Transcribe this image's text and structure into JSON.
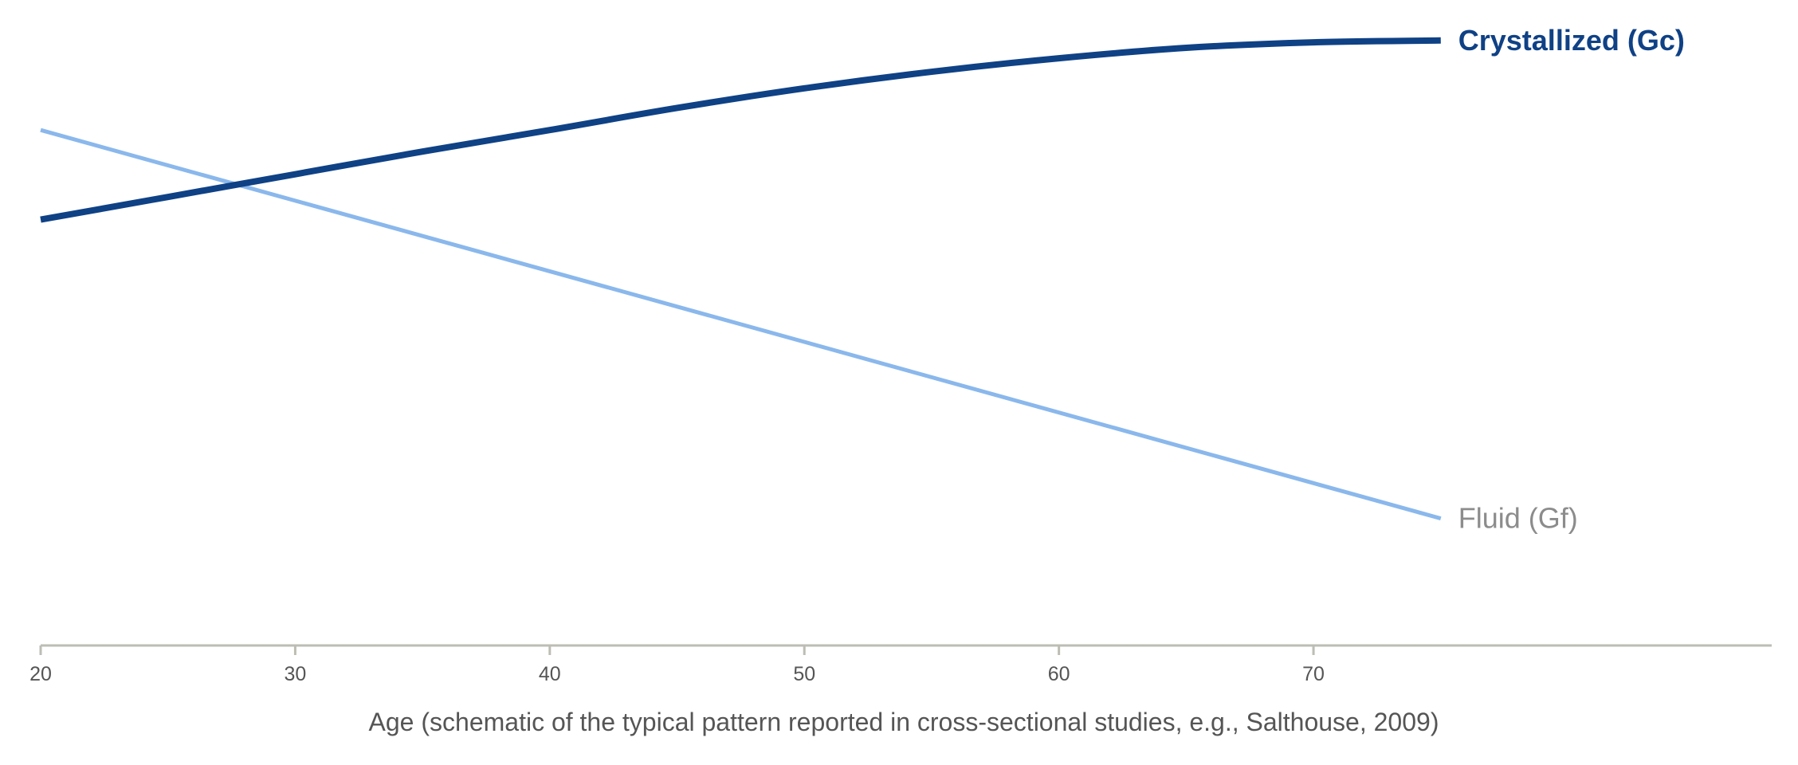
{
  "chart_data": {
    "type": "line",
    "title": "",
    "xlabel": "Age (schematic of the typical pattern reported in cross-sectional studies, e.g., Salthouse, 2009)",
    "ylabel": "",
    "xlim": [
      20,
      88
    ],
    "ylim": [
      0,
      100
    ],
    "x_ticks": [
      20,
      30,
      40,
      50,
      60,
      70
    ],
    "x_tick_labels": [
      "20",
      "30",
      "40",
      "50",
      "60",
      "70"
    ],
    "grid": false,
    "legend": "direct labels at line ends",
    "series": [
      {
        "name": "Crystallized (Gc)",
        "color": "#0f4185",
        "emphasis": "bold",
        "label_color": "#0f4185",
        "x": [
          20,
          25,
          30,
          35,
          40,
          45,
          50,
          55,
          60,
          65,
          70,
          75
        ],
        "y": [
          69.4,
          73.1,
          76.8,
          80.5,
          84.0,
          87.6,
          90.8,
          93.5,
          95.7,
          97.4,
          98.3,
          98.6
        ]
      },
      {
        "name": "Fluid (Gf)",
        "color": "#8ab8ec",
        "emphasis": "normal",
        "label_color": "#8c8c8c",
        "x": [
          20,
          75
        ],
        "y": [
          84.0,
          20.7
        ]
      }
    ]
  }
}
